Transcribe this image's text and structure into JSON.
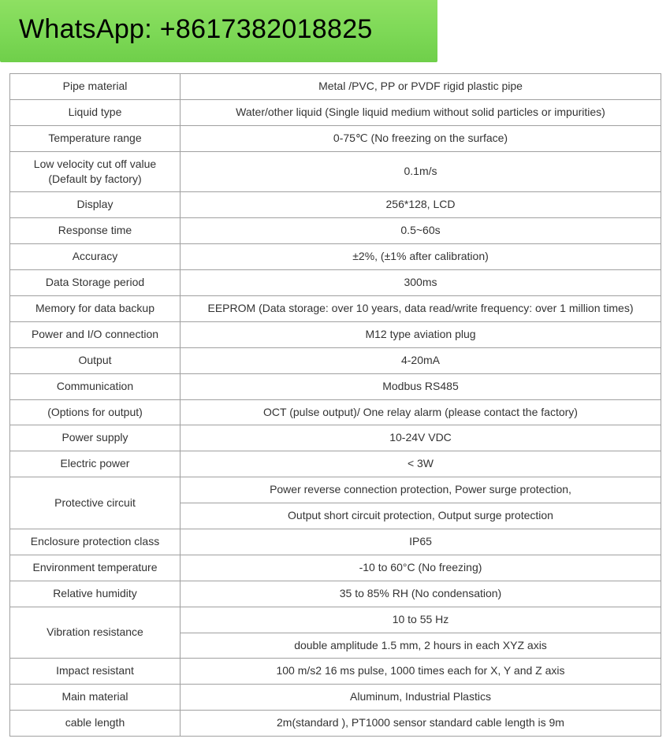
{
  "banner": {
    "text": "WhatsApp: +8617382018825",
    "bg_color": "#7ed957",
    "text_color": "#000000",
    "fontsize": 34
  },
  "table": {
    "border_color": "#a0a0a0",
    "text_color": "#333333",
    "fontsize": 14,
    "col_label_width": 216,
    "col_value_width": 610,
    "rows": [
      {
        "label": "Pipe material",
        "values": [
          "Metal /PVC, PP or PVDF rigid plastic pipe"
        ]
      },
      {
        "label": "Liquid type",
        "values": [
          "Water/other liquid (Single liquid medium without solid particles or impurities)"
        ]
      },
      {
        "label": "Temperature range",
        "values": [
          "0-75℃ (No freezing on the surface)"
        ]
      },
      {
        "label": "Low velocity cut off value\n(Default by factory)",
        "values": [
          "0.1m/s"
        ]
      },
      {
        "label": "Display",
        "values": [
          "256*128, LCD"
        ]
      },
      {
        "label": "Response time",
        "values": [
          "0.5~60s"
        ]
      },
      {
        "label": "Accuracy",
        "values": [
          "±2%, (±1% after calibration)"
        ]
      },
      {
        "label": "Data Storage period",
        "values": [
          "300ms"
        ]
      },
      {
        "label": "Memory for data backup",
        "values": [
          "EEPROM (Data storage: over 10 years, data read/write frequency: over 1 million times)"
        ]
      },
      {
        "label": "Power and I/O connection",
        "values": [
          "M12 type aviation plug"
        ]
      },
      {
        "label": "Output",
        "values": [
          "4-20mA"
        ]
      },
      {
        "label": "Communication",
        "values": [
          "Modbus RS485"
        ]
      },
      {
        "label": "(Options for output)",
        "values": [
          "OCT (pulse output)/ One relay alarm (please contact the factory)"
        ]
      },
      {
        "label": "Power supply",
        "values": [
          "10-24V VDC"
        ]
      },
      {
        "label": "Electric power",
        "values": [
          "< 3W"
        ]
      },
      {
        "label": "Protective circuit",
        "values": [
          "Power reverse connection protection, Power surge protection,",
          "Output short circuit protection, Output surge protection"
        ]
      },
      {
        "label": "Enclosure protection class",
        "values": [
          "IP65"
        ]
      },
      {
        "label": "Environment temperature",
        "values": [
          "-10 to 60°C (No freezing)"
        ]
      },
      {
        "label": "Relative humidity",
        "values": [
          "35 to 85% RH (No condensation)"
        ]
      },
      {
        "label": "Vibration resistance",
        "values": [
          "10 to 55 Hz",
          "double amplitude 1.5 mm, 2 hours in each XYZ axis"
        ]
      },
      {
        "label": "Impact resistant",
        "values": [
          "100 m/s2 16 ms pulse, 1000 times each for X, Y and Z axis"
        ]
      },
      {
        "label": "Main material",
        "values": [
          "Aluminum, Industrial Plastics"
        ]
      },
      {
        "label": "cable  length",
        "values": [
          "2m(standard ), PT1000 sensor standard cable length is 9m"
        ]
      }
    ]
  }
}
